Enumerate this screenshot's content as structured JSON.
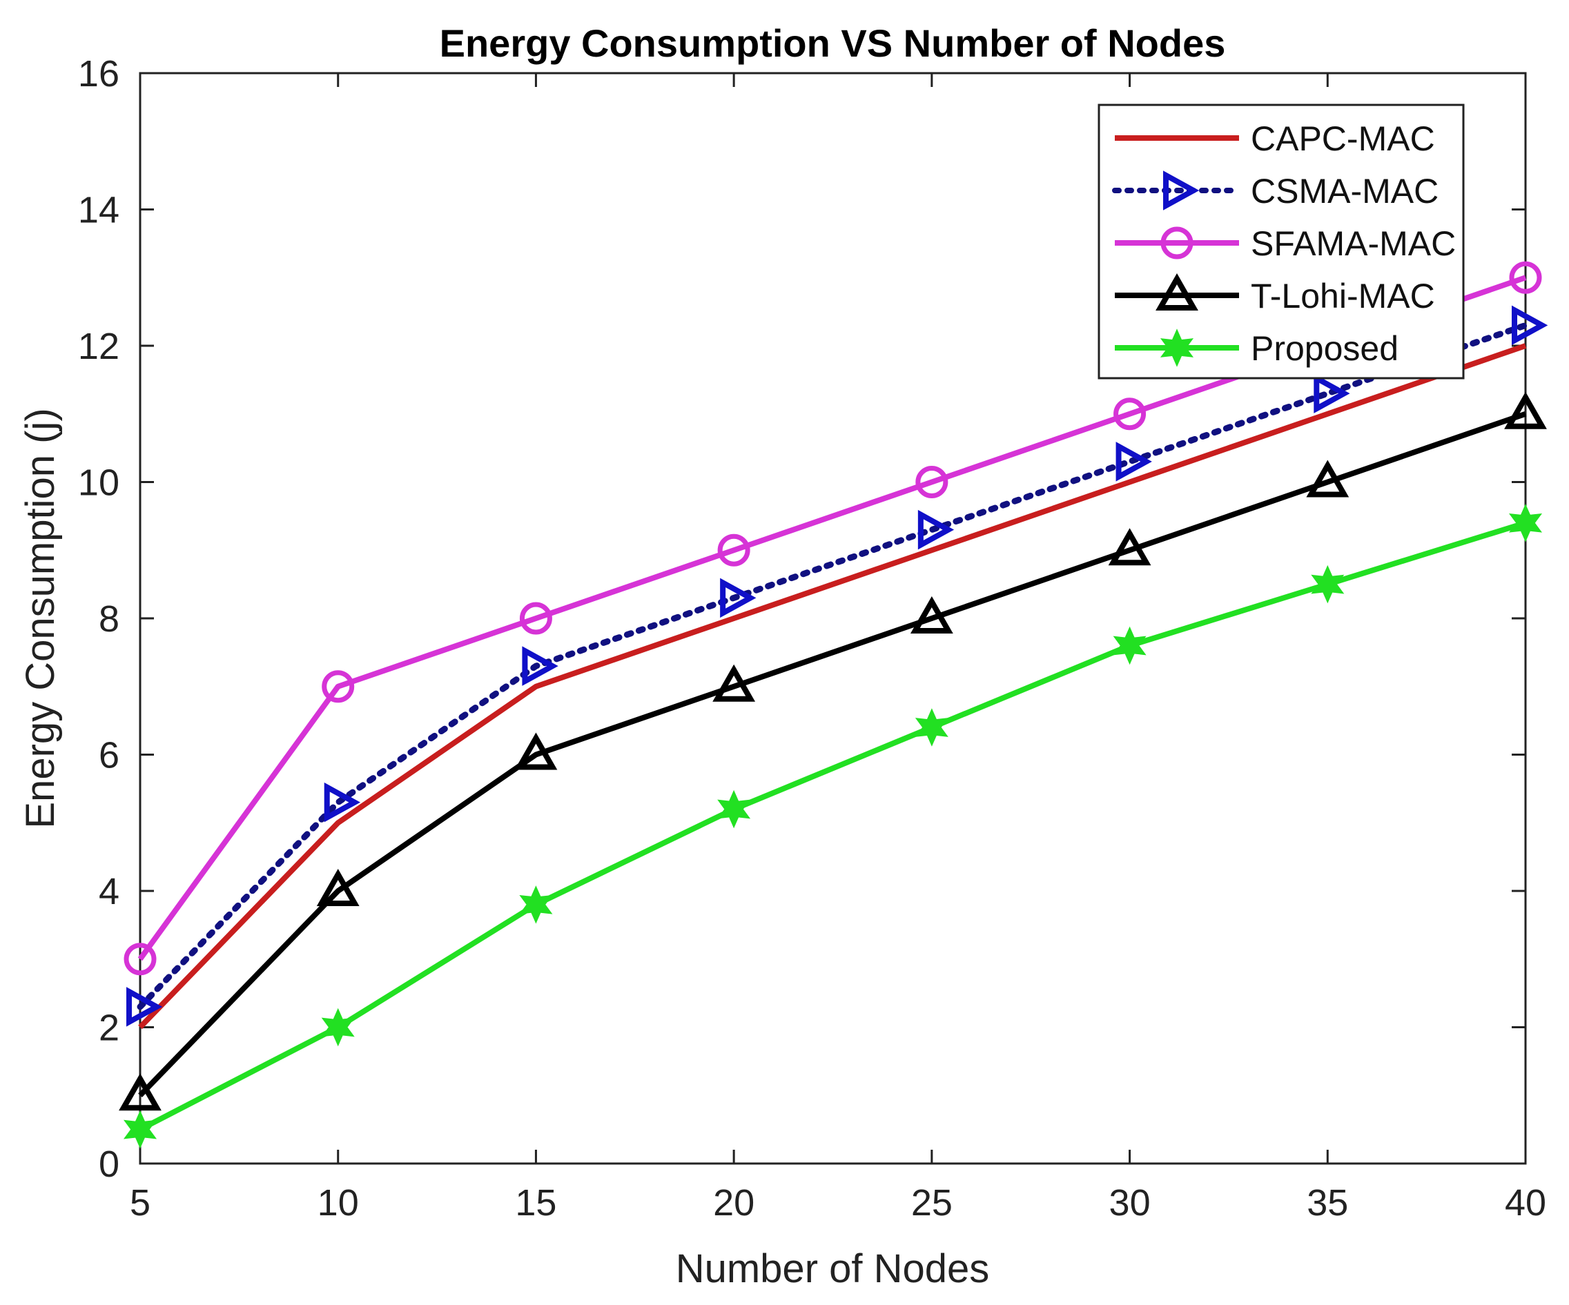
{
  "chart_data": {
    "type": "line",
    "title": "Energy Consumption VS Number of Nodes",
    "xlabel": "Number of Nodes",
    "ylabel": "Energy Consumption (j)",
    "x": [
      5,
      10,
      15,
      20,
      25,
      30,
      35,
      40
    ],
    "xlim": [
      5,
      40
    ],
    "ylim": [
      0,
      16
    ],
    "xticks": [
      5,
      10,
      15,
      20,
      25,
      30,
      35,
      40
    ],
    "yticks": [
      0,
      2,
      4,
      6,
      8,
      10,
      12,
      14,
      16
    ],
    "grid": false,
    "legend_position": "top-right",
    "series": [
      {
        "name": "CAPC-MAC",
        "color": "#c81e1e",
        "marker": "none",
        "dash": "solid",
        "values": [
          2,
          5,
          7,
          8,
          9,
          10,
          11,
          12
        ]
      },
      {
        "name": "CSMA-MAC",
        "color": "#1010c8",
        "marker": "triangle-right",
        "dash": "dotted",
        "values": [
          2.3,
          5.3,
          7.3,
          8.3,
          9.3,
          10.3,
          11.3,
          12.3
        ]
      },
      {
        "name": "SFAMA-MAC",
        "color": "#d633d6",
        "marker": "circle",
        "dash": "solid",
        "values": [
          3,
          7,
          8,
          9,
          10,
          11,
          12,
          13
        ]
      },
      {
        "name": "T-Lohi-MAC",
        "color": "#000000",
        "marker": "triangle-up",
        "dash": "solid",
        "values": [
          1,
          4,
          6,
          7,
          8,
          9,
          10,
          11
        ]
      },
      {
        "name": "Proposed",
        "color": "#22e022",
        "marker": "star",
        "dash": "solid",
        "values": [
          0.5,
          2,
          3.8,
          5.2,
          6.4,
          7.6,
          8.5,
          9.4
        ]
      }
    ]
  }
}
